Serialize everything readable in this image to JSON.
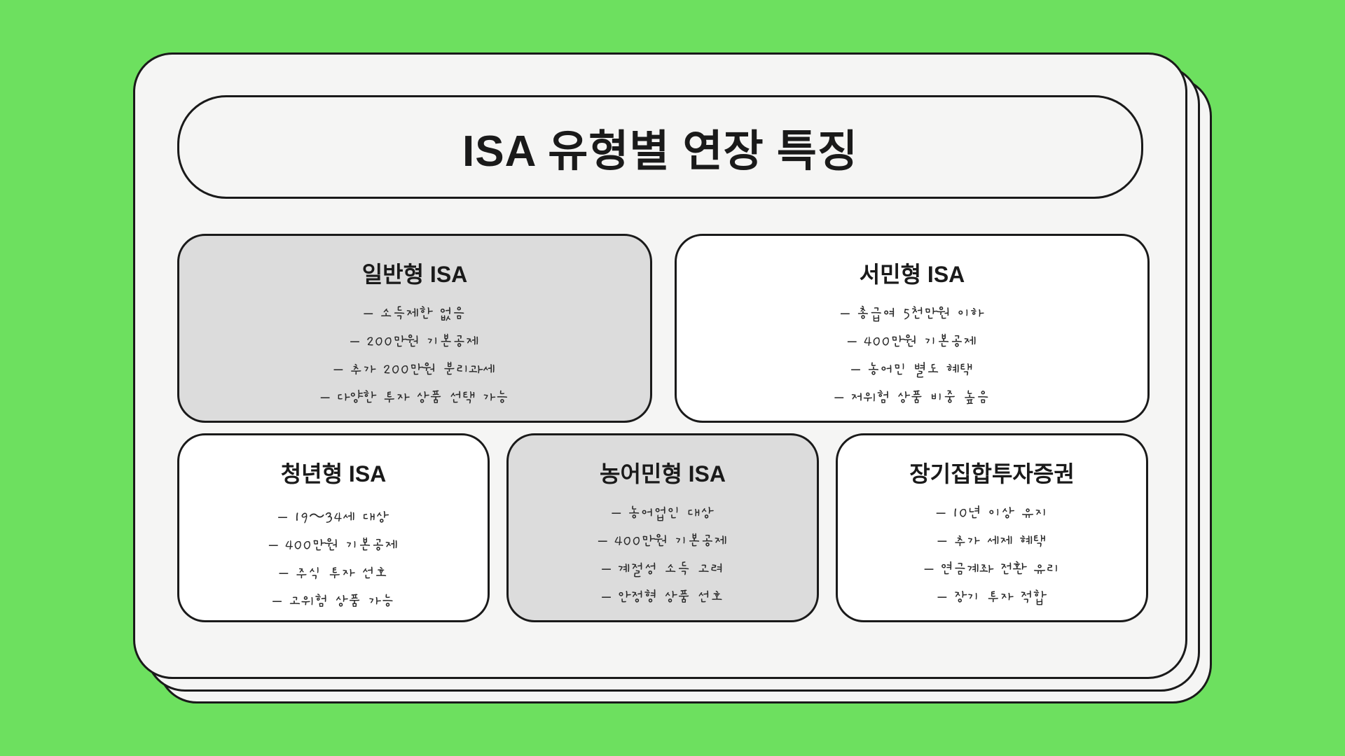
{
  "page": {
    "background_color": "#6de05f",
    "card_bg": "#f5f5f4",
    "border_color": "#1a1a1a"
  },
  "title": "ISA 유형별 연장 특징",
  "cards": [
    {
      "heading": "일반형 ISA",
      "shaded": true,
      "bullets": [
        "– 소득제한 없음",
        "– 200만원 기본공제",
        "– 추가 200만원 분리과세",
        "– 다양한 투자 상품 선택 가능"
      ]
    },
    {
      "heading": "서민형 ISA",
      "shaded": false,
      "bullets": [
        "– 총급여 5천만원 이하",
        "– 400만원 기본공제",
        "– 농어민 별도 혜택",
        "– 저위험 상품 비중 높음"
      ]
    },
    {
      "heading": "청년형 ISA",
      "shaded": false,
      "bullets": [
        "– 19～34세 대상",
        "– 400만원 기본공제",
        "– 주식 투자 선호",
        "– 고위험 상품 가능"
      ]
    },
    {
      "heading": "농어민형 ISA",
      "shaded": true,
      "bullets": [
        "– 농어업인 대상",
        "– 400만원 기본공제",
        "– 계절성 소득 고려",
        "– 안정형 상품 선호"
      ]
    },
    {
      "heading": "장기집합투자증권",
      "shaded": false,
      "bullets": [
        "– 10년 이상 유지",
        "– 추가 세제 혜택",
        "– 연금계좌 전환 유리",
        "– 장기 투자 적합"
      ]
    }
  ]
}
